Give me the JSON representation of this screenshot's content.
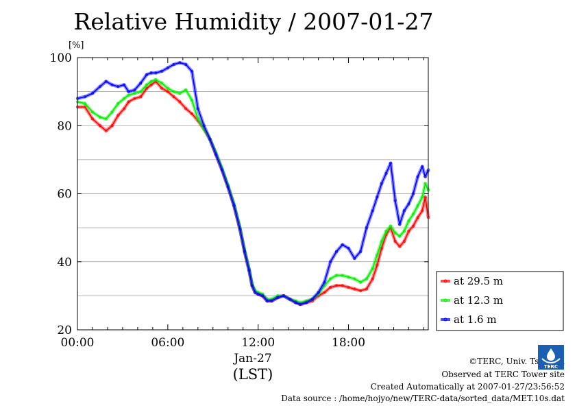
{
  "chart_data": {
    "type": "line",
    "title": "Relative Humidity / 2007-01-27",
    "ylabel": "[%]",
    "xlabel": "(LST)",
    "x_date_label": "Jan-27",
    "xlim": [
      0,
      23.3
    ],
    "ylim": [
      20,
      100
    ],
    "x_ticks": [
      {
        "x": 0,
        "label": "00:00"
      },
      {
        "x": 6,
        "label": "06:00"
      },
      {
        "x": 12,
        "label": "12:00"
      },
      {
        "x": 18,
        "label": "18:00"
      }
    ],
    "y_ticks": [
      20,
      40,
      60,
      80,
      100
    ],
    "grid": "horizontal",
    "legend_position": "bottom-right, outside plot",
    "series": [
      {
        "name": "at 29.5 m",
        "color": "#ff0000",
        "x": [
          0,
          0.5,
          1,
          1.5,
          1.9,
          2.3,
          2.7,
          3.1,
          3.4,
          3.8,
          4.2,
          4.6,
          4.9,
          5.2,
          5.6,
          6,
          6.4,
          6.8,
          7.2,
          7.6,
          8,
          8.4,
          8.8,
          9.2,
          9.6,
          10,
          10.4,
          10.8,
          11.1,
          11.4,
          11.6,
          11.8,
          12,
          12.3,
          12.6,
          12.9,
          13.3,
          13.7,
          14.1,
          14.5,
          14.8,
          15.2,
          15.6,
          16,
          16.4,
          16.8,
          17.2,
          17.6,
          18,
          18.4,
          18.8,
          19.2,
          19.6,
          19.9,
          20.2,
          20.5,
          20.8,
          21.1,
          21.4,
          21.7,
          22,
          22.3,
          22.6,
          22.9,
          23.1,
          23.3
        ],
        "y": [
          85.5,
          85.5,
          82,
          80,
          78.5,
          80,
          83,
          85,
          87,
          88,
          88.5,
          91,
          92,
          93,
          91,
          90,
          88.5,
          87,
          85,
          83.5,
          81.5,
          79,
          76,
          71.5,
          67,
          62,
          56.5,
          49.5,
          43,
          37.5,
          33,
          31,
          30.5,
          30,
          28.5,
          28.5,
          29.5,
          30,
          29,
          28,
          27.5,
          28,
          28.5,
          30,
          31,
          32.5,
          33,
          33,
          32.5,
          32,
          31.5,
          32,
          35,
          39,
          44,
          48,
          50,
          46,
          44.5,
          46,
          49,
          50.5,
          53,
          55,
          59,
          53
        ]
      },
      {
        "name": "at 12.3 m",
        "color": "#00ee00",
        "x": [
          0,
          0.5,
          1,
          1.5,
          1.9,
          2.3,
          2.7,
          3.1,
          3.4,
          3.8,
          4.2,
          4.6,
          4.9,
          5.2,
          5.6,
          6,
          6.4,
          6.8,
          7.2,
          7.6,
          8,
          8.4,
          8.8,
          9.2,
          9.6,
          10,
          10.4,
          10.8,
          11.1,
          11.4,
          11.6,
          11.8,
          12,
          12.3,
          12.6,
          12.9,
          13.3,
          13.7,
          14.1,
          14.5,
          14.8,
          15.2,
          15.6,
          16,
          16.4,
          16.8,
          17.2,
          17.6,
          18,
          18.4,
          18.8,
          19.2,
          19.6,
          19.9,
          20.2,
          20.5,
          20.8,
          21.1,
          21.4,
          21.7,
          22,
          22.3,
          22.6,
          22.9,
          23.1,
          23.3
        ],
        "y": [
          87,
          86.5,
          84,
          82.5,
          82,
          84,
          86.5,
          88,
          89,
          89.5,
          90,
          92,
          93,
          93.5,
          92.5,
          91,
          90,
          89.5,
          90.5,
          87.5,
          82,
          79,
          76,
          72,
          67.5,
          62.5,
          57,
          50,
          43.5,
          38,
          33.5,
          31.5,
          31,
          30.5,
          29,
          29,
          30,
          30,
          29,
          28.5,
          28,
          28.5,
          29,
          30.5,
          33,
          35,
          36,
          36,
          35.5,
          35,
          34,
          35,
          38,
          42,
          46,
          49,
          50.5,
          48.5,
          47.5,
          49,
          52,
          54,
          56.5,
          59,
          63,
          61
        ]
      },
      {
        "name": "at 1.6 m",
        "color": "#0000ff",
        "x": [
          0,
          0.5,
          1,
          1.5,
          1.9,
          2.3,
          2.7,
          3.1,
          3.4,
          3.8,
          4.2,
          4.6,
          4.9,
          5.2,
          5.6,
          6,
          6.4,
          6.8,
          7.2,
          7.6,
          8,
          8.4,
          8.8,
          9.2,
          9.6,
          10,
          10.4,
          10.8,
          11.1,
          11.4,
          11.6,
          11.8,
          12,
          12.3,
          12.6,
          12.9,
          13.3,
          13.7,
          14.1,
          14.5,
          14.8,
          15.2,
          15.6,
          16,
          16.4,
          16.8,
          17.2,
          17.6,
          18,
          18.4,
          18.8,
          19.2,
          19.6,
          19.9,
          20.2,
          20.5,
          20.8,
          21.1,
          21.4,
          21.7,
          22,
          22.3,
          22.6,
          22.9,
          23.1,
          23.3
        ],
        "y": [
          88,
          88.5,
          89.5,
          91.5,
          93,
          92,
          91.5,
          92,
          90,
          90.5,
          92.5,
          95,
          95.5,
          95.5,
          96,
          97,
          98,
          98.5,
          98,
          96,
          85,
          80,
          76,
          71.5,
          67,
          62,
          56.5,
          49.5,
          43,
          37.5,
          33,
          31,
          30.5,
          30,
          28.5,
          28.5,
          29.5,
          30,
          29,
          28,
          27.5,
          28,
          29,
          31,
          34,
          40,
          43,
          45,
          44,
          41,
          43,
          50,
          55,
          59,
          63,
          66,
          69,
          58,
          51,
          55,
          57,
          60,
          65,
          68,
          65,
          67
        ]
      }
    ],
    "legend": [
      "at 29.5 m",
      "at 12.3 m",
      "at 1.6 m"
    ]
  },
  "credits": {
    "copyright": "©TERC, Univ. Tsukuba",
    "observed": "Observed at TERC Tower site",
    "created": "Created Automatically at 2007-01-27/23:56:52",
    "source": "Data source : /home/hojyo/new/TERC-data/sorted_data/MET.10s.dat"
  },
  "logo": {
    "text": "TERC",
    "color": "#1a5fb4"
  }
}
